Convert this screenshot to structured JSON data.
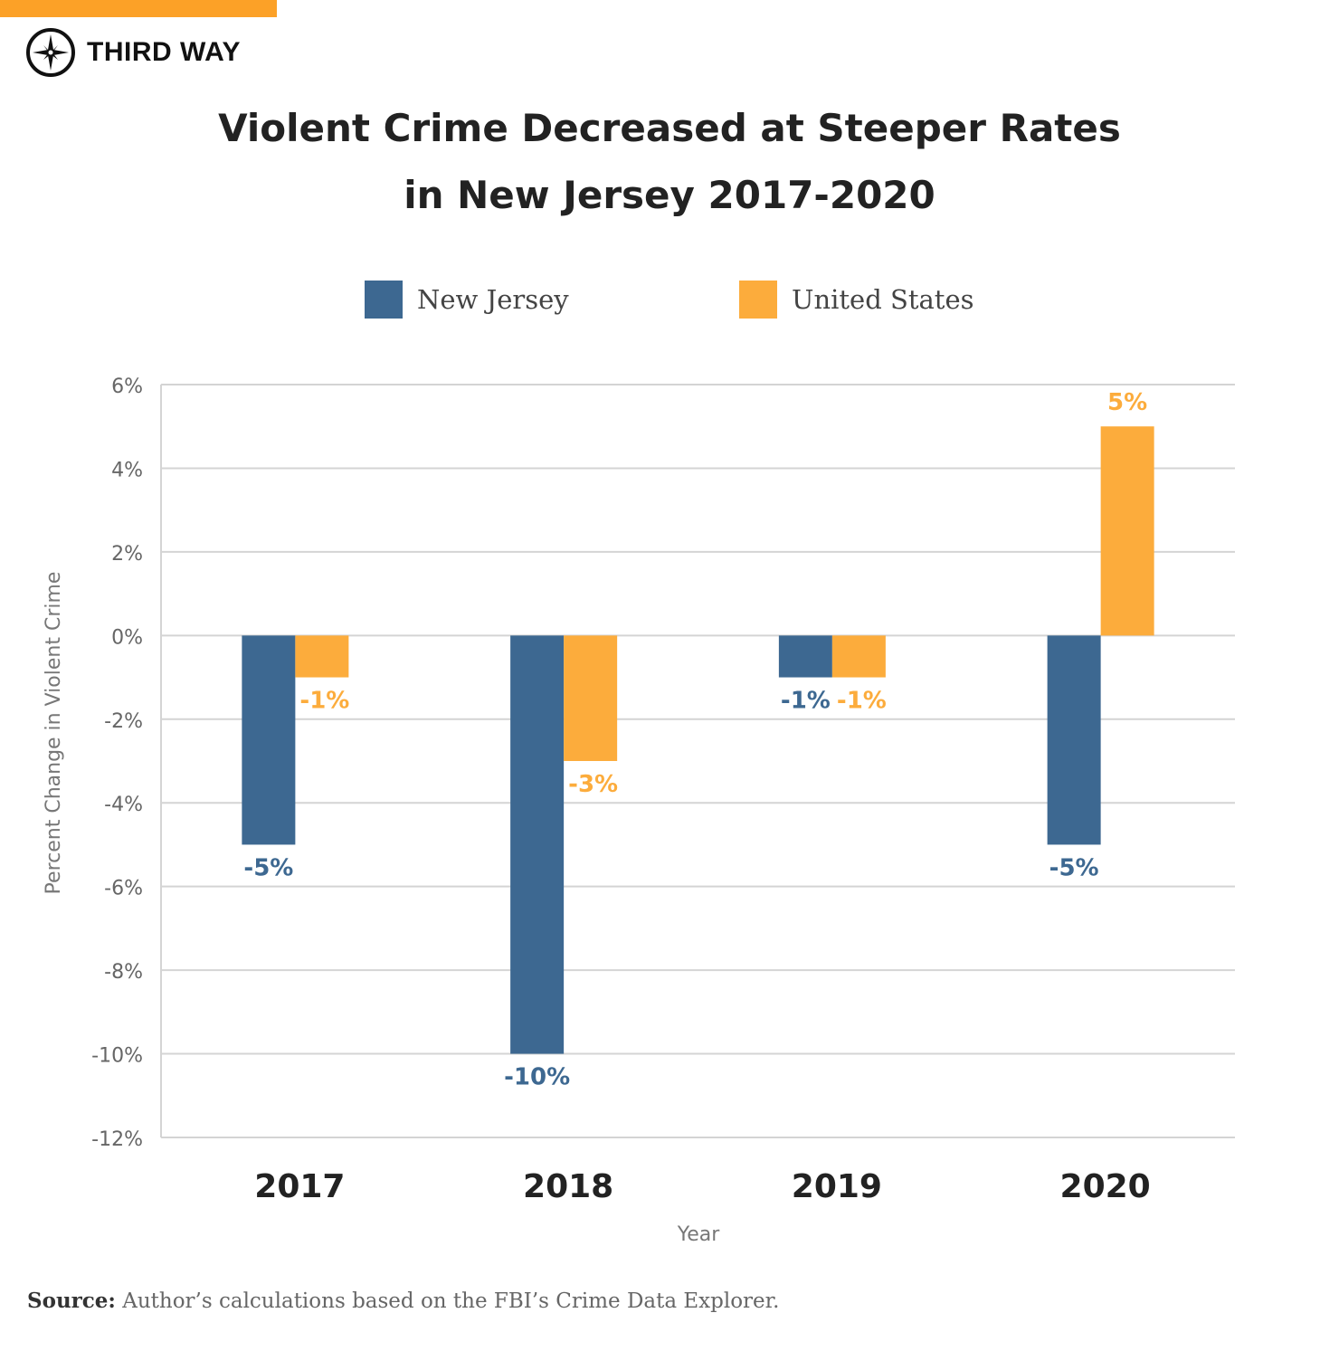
{
  "brand": {
    "name": "THIRD WAY",
    "accent": "#fca127"
  },
  "chart_data": {
    "type": "bar",
    "title": "Violent Crime Decreased at Steeper Rates in New Jersey 2017-2020",
    "title_lines": [
      "Violent Crime Decreased at Steeper Rates",
      "in New Jersey 2017-2020"
    ],
    "xlabel": "Year",
    "ylabel": "Percent Change in Violent Crime",
    "categories": [
      "2017",
      "2018",
      "2019",
      "2020"
    ],
    "series": [
      {
        "name": "New Jersey",
        "color": "#3d6891",
        "values": [
          -5,
          -10,
          -1,
          -5
        ],
        "labels": [
          "-5%",
          "-10%",
          "-1%",
          "-5%"
        ]
      },
      {
        "name": "United States",
        "color": "#fcac3c",
        "values": [
          -1,
          -3,
          -1,
          5
        ],
        "labels": [
          "-1%",
          "-3%",
          "-1%",
          "5%"
        ]
      }
    ],
    "ylim": [
      -12,
      6
    ],
    "yticks": [
      6,
      4,
      2,
      0,
      -2,
      -4,
      -6,
      -8,
      -10,
      -12
    ],
    "ytick_labels": [
      "6%",
      "4%",
      "2%",
      "0%",
      "-2%",
      "-4%",
      "-6%",
      "-8%",
      "-10%",
      "-12%"
    ],
    "grid": true,
    "legend_position": "top"
  },
  "source": {
    "label": "Source:",
    "text": " Author’s calculations based on the FBI’s Crime Data Explorer."
  }
}
